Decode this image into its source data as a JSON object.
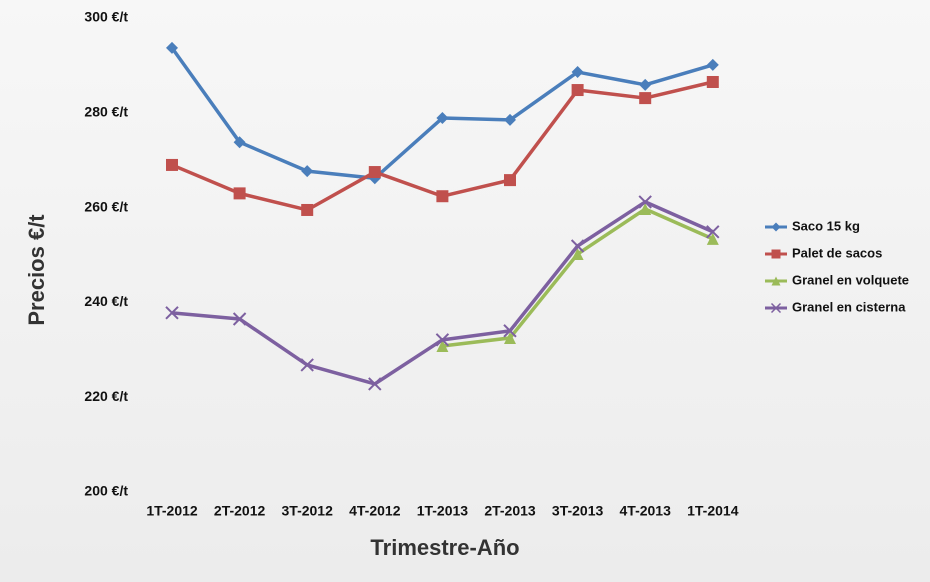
{
  "chart_data": {
    "type": "line",
    "x_label": "Trimestre-Año",
    "y_label": "Precios €/t",
    "categories": [
      "1T-2012",
      "2T-2012",
      "3T-2012",
      "4T-2012",
      "1T-2013",
      "2T-2013",
      "3T-2013",
      "4T-2013",
      "1T-2014"
    ],
    "series": [
      {
        "name": "Saco 15 kg",
        "color": "#4a7ebb",
        "marker": "diamond",
        "values": [
          293.7,
          273.8,
          267.7,
          266.2,
          278.9,
          278.5,
          288.6,
          285.9,
          290.1
        ]
      },
      {
        "name": "Palet de sacos",
        "color": "#c0504d",
        "marker": "square",
        "values": [
          269,
          263,
          259.5,
          267.5,
          262.4,
          265.8,
          284.8,
          283.1,
          286.5
        ]
      },
      {
        "name": "Granel en volquete",
        "color": "#9bbb59",
        "marker": "triangle",
        "values": [
          null,
          null,
          null,
          null,
          230.8,
          232.5,
          250.2,
          259.7,
          253.4
        ]
      },
      {
        "name": "Granel en cisterna",
        "color": "#7d60a0",
        "marker": "x",
        "values": [
          237.8,
          236.5,
          226.8,
          222.8,
          232.1,
          234,
          251.9,
          261.2,
          254.9
        ]
      }
    ],
    "ylim": [
      200,
      300
    ],
    "yticks": [
      {
        "value": 200,
        "label": "200 €/t"
      },
      {
        "value": 220,
        "label": "220 €/t"
      },
      {
        "value": 240,
        "label": "240 €/t"
      },
      {
        "value": 260,
        "label": "260 €/t"
      },
      {
        "value": 280,
        "label": "280 €/t"
      },
      {
        "value": 300,
        "label": "300 €/t"
      }
    ],
    "grid": false,
    "legend": "right"
  }
}
